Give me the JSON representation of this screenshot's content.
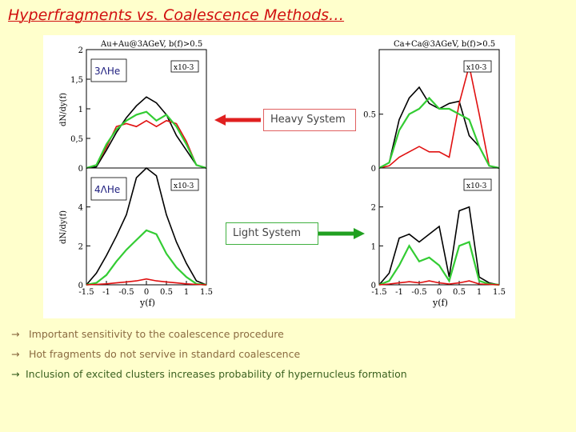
{
  "title": "Hyperfragments vs. Coalescence Methods…",
  "callouts": {
    "heavy": "Heavy System",
    "light": "Light System"
  },
  "bullets": [
    {
      "arrow": "→",
      "text": " Important sensitivity to the coalescence procedure"
    },
    {
      "arrow": "→",
      "text": " Hot fragments do not servive in standard coalescence"
    },
    {
      "arrow": "→",
      "text": "Inclusion of excited clusters increases probability of hypernucleus formation"
    }
  ],
  "colors": {
    "title": "#d11010",
    "background": "#ffffcc",
    "heavy_arrow": "#e02020",
    "light_arrow": "#20a020",
    "black": "#000000",
    "red": "#e01010",
    "green": "#33cc33"
  },
  "chart_data": [
    {
      "type": "line",
      "panel_label": "Au+Au@3AGeV, b(f)>0.5",
      "species": "3ΛHe",
      "scale": "x10-3",
      "ylabel": "dN/dy(f)",
      "xlim": [
        -1.5,
        1.5
      ],
      "ylim": [
        0,
        2
      ],
      "yticks": [
        "0",
        "0,5",
        "1",
        "1,5",
        "2"
      ],
      "x": [
        -1.5,
        -1.25,
        -1,
        -0.75,
        -0.5,
        -0.25,
        0,
        0.25,
        0.5,
        0.75,
        1,
        1.25,
        1.5
      ],
      "series": [
        {
          "color": "black",
          "values": [
            0,
            0.02,
            0.3,
            0.6,
            0.85,
            1.05,
            1.2,
            1.1,
            0.9,
            0.55,
            0.3,
            0.05,
            0
          ]
        },
        {
          "color": "red",
          "values": [
            0,
            0.05,
            0.35,
            0.7,
            0.75,
            0.7,
            0.8,
            0.7,
            0.8,
            0.75,
            0.45,
            0.05,
            0
          ]
        },
        {
          "color": "green",
          "values": [
            0,
            0.05,
            0.4,
            0.65,
            0.8,
            0.9,
            0.95,
            0.8,
            0.9,
            0.7,
            0.4,
            0.05,
            0
          ]
        }
      ]
    },
    {
      "type": "line",
      "species": "4ΛHe",
      "scale": "x10-3",
      "ylabel": "dN/dy(f)",
      "xlabel": "y(f)",
      "xlim": [
        -1.5,
        1.5
      ],
      "ylim": [
        0,
        6
      ],
      "yticks": [
        "0",
        "2",
        "4"
      ],
      "xticks": [
        "-1.5",
        "-1",
        "-0.5",
        "0",
        "0.5",
        "1",
        "1.5"
      ],
      "x": [
        -1.5,
        -1.25,
        -1,
        -0.75,
        -0.5,
        -0.25,
        0,
        0.25,
        0.5,
        0.75,
        1,
        1.25,
        1.5
      ],
      "series": [
        {
          "color": "black",
          "values": [
            0,
            0.6,
            1.5,
            2.5,
            3.6,
            5.5,
            6.0,
            5.6,
            3.6,
            2.2,
            1.1,
            0.2,
            0
          ]
        },
        {
          "color": "green",
          "values": [
            0,
            0.1,
            0.5,
            1.2,
            1.8,
            2.3,
            2.8,
            2.6,
            1.6,
            0.9,
            0.4,
            0.05,
            0
          ]
        },
        {
          "color": "red",
          "values": [
            0,
            0.02,
            0.05,
            0.1,
            0.15,
            0.2,
            0.3,
            0.2,
            0.15,
            0.1,
            0.05,
            0.02,
            0
          ]
        }
      ]
    },
    {
      "type": "line",
      "panel_label": "Ca+Ca@3AGeV, b(f)>0.5",
      "scale": "x10-3",
      "xlim": [
        -1.5,
        1.5
      ],
      "ylim": [
        0,
        1.1
      ],
      "yticks": [
        "0",
        "0.5"
      ],
      "x": [
        -1.5,
        -1.25,
        -1,
        -0.75,
        -0.5,
        -0.25,
        0,
        0.25,
        0.5,
        0.75,
        1,
        1.25,
        1.5
      ],
      "series": [
        {
          "color": "black",
          "values": [
            0,
            0.05,
            0.45,
            0.65,
            0.75,
            0.6,
            0.55,
            0.6,
            0.62,
            0.3,
            0.2,
            0.02,
            0
          ]
        },
        {
          "color": "red",
          "values": [
            0,
            0.02,
            0.1,
            0.15,
            0.2,
            0.15,
            0.15,
            0.1,
            0.6,
            0.95,
            0.5,
            0.02,
            0
          ]
        },
        {
          "color": "green",
          "values": [
            0,
            0.05,
            0.35,
            0.5,
            0.55,
            0.65,
            0.55,
            0.55,
            0.5,
            0.45,
            0.2,
            0.02,
            0
          ]
        }
      ]
    },
    {
      "type": "line",
      "scale": "x10-3",
      "xlabel": "y(f)",
      "xlim": [
        -1.5,
        1.5
      ],
      "ylim": [
        0,
        3
      ],
      "yticks": [
        "0",
        "1",
        "2"
      ],
      "xticks": [
        "-1.5",
        "-1",
        "-0.5",
        "0",
        "0.5",
        "1",
        "1.5"
      ],
      "x": [
        -1.5,
        -1.25,
        -1,
        -0.75,
        -0.5,
        -0.25,
        0,
        0.25,
        0.5,
        0.75,
        1,
        1.25,
        1.5
      ],
      "series": [
        {
          "color": "black",
          "values": [
            0,
            0.3,
            1.2,
            1.3,
            1.1,
            1.3,
            1.5,
            0.2,
            1.9,
            2.0,
            0.2,
            0.05,
            0
          ]
        },
        {
          "color": "green",
          "values": [
            0,
            0.1,
            0.5,
            1.0,
            0.6,
            0.7,
            0.5,
            0.1,
            1.0,
            1.1,
            0.1,
            0.02,
            0
          ]
        },
        {
          "color": "red",
          "values": [
            0,
            0.02,
            0.05,
            0.08,
            0.05,
            0.1,
            0.05,
            0.02,
            0.05,
            0.1,
            0.02,
            0.01,
            0
          ]
        }
      ]
    }
  ]
}
